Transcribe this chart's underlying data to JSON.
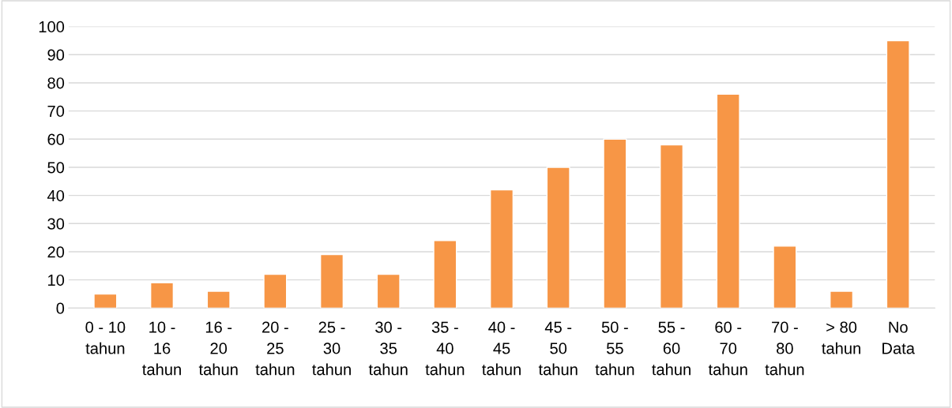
{
  "chart_data": {
    "type": "bar",
    "categories": [
      "0 - 10\ntahun",
      "10 -\n16\ntahun",
      "16 -\n20\ntahun",
      "20 -\n25\ntahun",
      "25 -\n30\ntahun",
      "30 -\n35\ntahun",
      "35 -\n40\ntahun",
      "40 -\n45\ntahun",
      "45 -\n50\ntahun",
      "50 -\n55\ntahun",
      "55 -\n60\ntahun",
      "60 -\n70\ntahun",
      "70 -\n80\ntahun",
      "> 80\ntahun",
      "No\nData"
    ],
    "values": [
      5,
      9,
      6,
      12,
      19,
      12,
      24,
      42,
      50,
      60,
      58,
      76,
      22,
      6,
      95
    ],
    "color": "#f79646",
    "ylim": [
      0,
      100
    ],
    "yticks": [
      0,
      10,
      20,
      30,
      40,
      50,
      60,
      70,
      80,
      90,
      100
    ],
    "grid": "y",
    "legend": false
  }
}
